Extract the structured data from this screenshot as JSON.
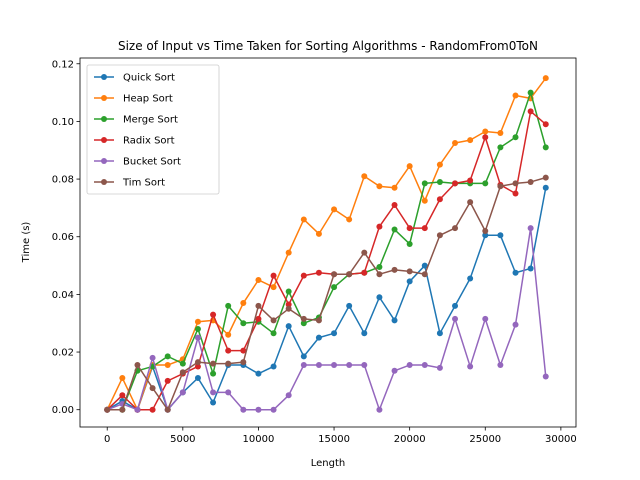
{
  "chart_data": {
    "type": "line",
    "title": "Size of Input vs Time Taken for Sorting Algorithms - RandomFrom0ToN",
    "xlabel": "Length",
    "ylabel": "Time (s)",
    "xlim": [
      -1800,
      31000
    ],
    "ylim": [
      -0.006,
      0.122
    ],
    "xticks": [
      0,
      5000,
      10000,
      15000,
      20000,
      25000,
      30000
    ],
    "xtick_labels": [
      "0",
      "5000",
      "10000",
      "15000",
      "20000",
      "25000",
      "30000"
    ],
    "yticks": [
      0.0,
      0.02,
      0.04,
      0.06,
      0.08,
      0.1,
      0.12
    ],
    "ytick_labels": [
      "0.00",
      "0.02",
      "0.04",
      "0.06",
      "0.08",
      "0.10",
      "0.12"
    ],
    "grid": false,
    "legend_position": "top-left",
    "x": [
      0,
      1000,
      2000,
      3000,
      4000,
      5000,
      6000,
      7000,
      8000,
      9000,
      10000,
      11000,
      12000,
      13000,
      14000,
      15000,
      16000,
      17000,
      18000,
      19000,
      20000,
      21000,
      22000,
      23000,
      24000,
      25000,
      26000,
      27000,
      28000,
      29000
    ],
    "series": [
      {
        "name": "Quick Sort",
        "color": "#1f77b4",
        "values": [
          0.0,
          0.003,
          0.0,
          0.015,
          0.0,
          0.006,
          0.011,
          0.0025,
          0.0155,
          0.0155,
          0.0125,
          0.015,
          0.029,
          0.0185,
          0.025,
          0.0265,
          0.036,
          0.0265,
          0.039,
          0.031,
          0.0445,
          0.05,
          0.0265,
          0.036,
          0.0455,
          0.0605,
          0.0605,
          0.0475,
          0.049,
          0.077
        ]
      },
      {
        "name": "Heap Sort",
        "color": "#ff7f0e",
        "values": [
          0.0,
          0.011,
          0.0,
          0.0155,
          0.0155,
          0.0175,
          0.0305,
          0.031,
          0.026,
          0.037,
          0.045,
          0.0425,
          0.0545,
          0.066,
          0.061,
          0.0695,
          0.066,
          0.081,
          0.0775,
          0.077,
          0.0845,
          0.0725,
          0.085,
          0.0925,
          0.0935,
          0.0965,
          0.096,
          0.109,
          0.108,
          0.115
        ]
      },
      {
        "name": "Merge Sort",
        "color": "#2ca02c",
        "values": [
          0.0,
          0.0,
          0.0135,
          0.015,
          0.0185,
          0.016,
          0.028,
          0.0125,
          0.036,
          0.03,
          0.0305,
          0.0265,
          0.041,
          0.03,
          0.032,
          0.0425,
          0.047,
          0.0475,
          0.0495,
          0.0625,
          0.0575,
          0.0785,
          0.079,
          0.0785,
          0.0785,
          0.0785,
          0.091,
          0.0945,
          0.11,
          0.091
        ]
      },
      {
        "name": "Radix Sort",
        "color": "#d62728",
        "values": [
          0.0,
          0.005,
          0.0,
          0.0,
          0.01,
          0.0125,
          0.015,
          0.033,
          0.0205,
          0.0205,
          0.0315,
          0.0465,
          0.0365,
          0.0465,
          0.0475,
          0.047,
          0.047,
          0.0475,
          0.0635,
          0.071,
          0.063,
          0.063,
          0.073,
          0.0785,
          0.0795,
          0.0945,
          0.078,
          0.075,
          0.1035,
          0.099
        ]
      },
      {
        "name": "Bucket Sort",
        "color": "#9467bd",
        "values": [
          0.0,
          0.002,
          0.0,
          0.018,
          0.0,
          0.006,
          0.025,
          0.006,
          0.006,
          0.0,
          0.0,
          0.0,
          0.005,
          0.0155,
          0.0155,
          0.0155,
          0.0155,
          0.0155,
          0.0,
          0.0135,
          0.0155,
          0.0155,
          0.0145,
          0.0315,
          0.015,
          0.0315,
          0.0155,
          0.0295,
          0.063,
          0.0115
        ]
      },
      {
        "name": "Tim Sort",
        "color": "#8c564b",
        "values": [
          0.0,
          0.0,
          0.0155,
          0.0075,
          0.0,
          0.013,
          0.0165,
          0.016,
          0.016,
          0.0165,
          0.036,
          0.031,
          0.035,
          0.0315,
          0.031,
          0.047,
          0.047,
          0.0545,
          0.047,
          0.0485,
          0.048,
          0.047,
          0.0605,
          0.063,
          0.072,
          0.062,
          0.0775,
          0.0785,
          0.079,
          0.0805
        ]
      }
    ]
  }
}
